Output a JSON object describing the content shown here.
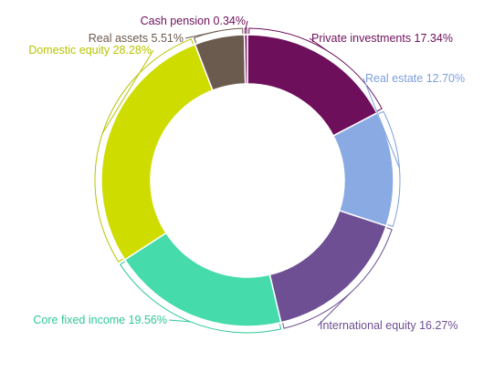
{
  "chart_data": {
    "type": "pie",
    "variant": "donut",
    "title": "",
    "legend": "none",
    "slices": [
      {
        "label": "Private investments",
        "value": 17.34,
        "value_label": "17.34%",
        "color": "#6e0f5b",
        "label_color": "#6e0f5b"
      },
      {
        "label": "Real estate",
        "value": 12.7,
        "value_label": "12.70%",
        "color": "#8aaae4",
        "label_color": "#7d9fdc"
      },
      {
        "label": "International equity",
        "value": 16.27,
        "value_label": "16.27%",
        "color": "#6e4f93",
        "label_color": "#6e4f93"
      },
      {
        "label": "Core fixed income",
        "value": 19.56,
        "value_label": "19.56%",
        "color": "#45dbab",
        "label_color": "#2fc79a"
      },
      {
        "label": "Domestic equity",
        "value": 28.28,
        "value_label": "28.28%",
        "color": "#cfdc00",
        "label_color": "#b8c400"
      },
      {
        "label": "Real assets",
        "value": 5.51,
        "value_label": "5.51%",
        "color": "#6b5a4e",
        "label_color": "#6b5a4e"
      },
      {
        "label": "Cash pension",
        "value": 0.34,
        "value_label": "0.34%",
        "color": "#8a1a6e",
        "label_color": "#6e0f5b"
      }
    ]
  }
}
